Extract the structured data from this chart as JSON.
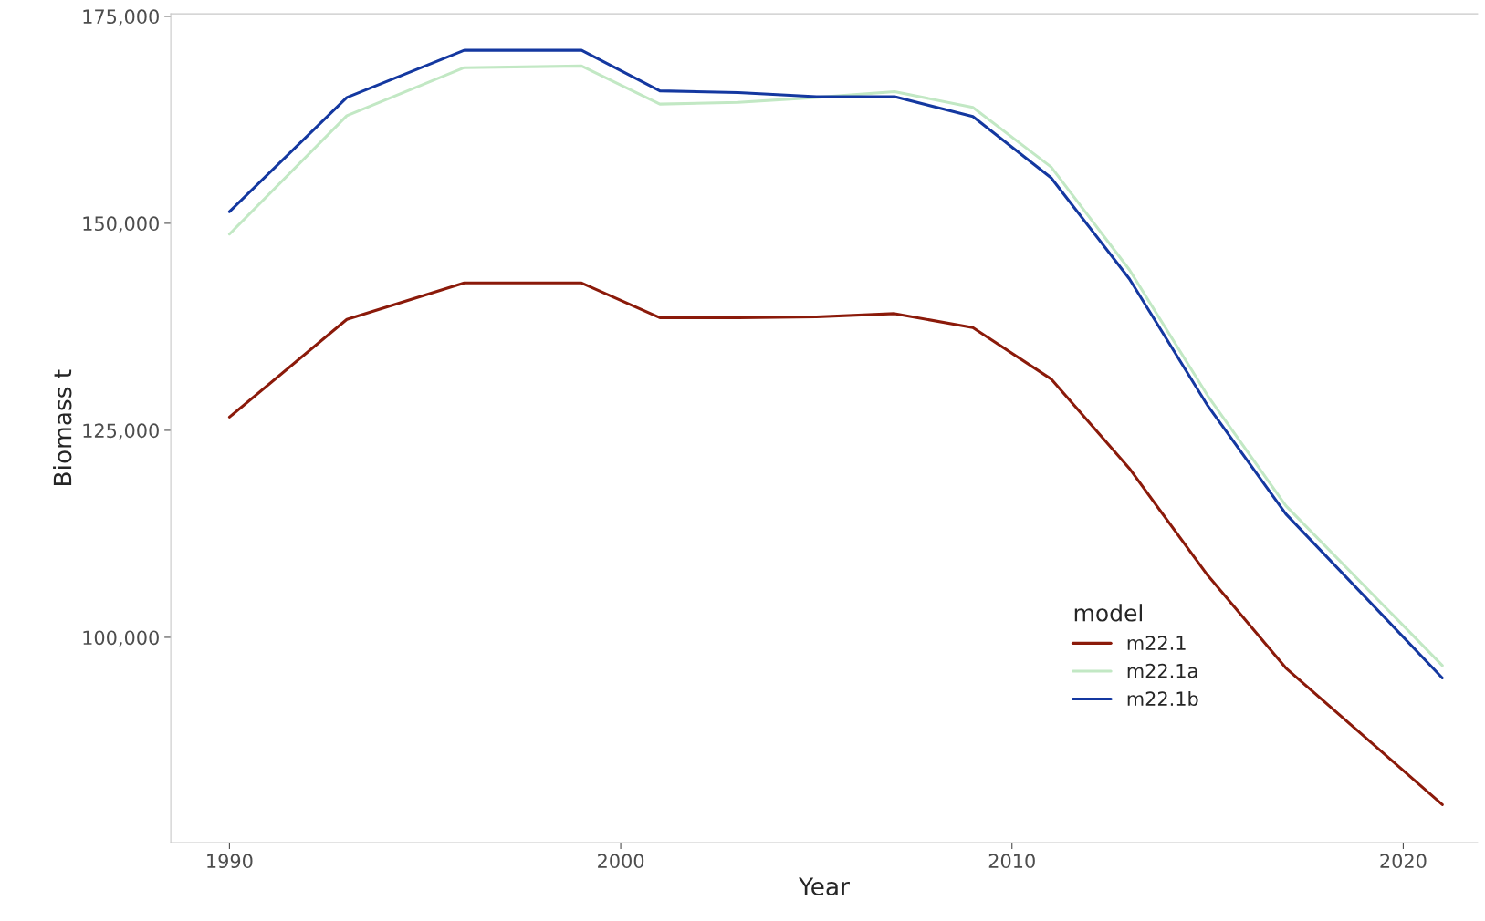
{
  "chart_data": {
    "type": "line",
    "xlabel": "Year",
    "ylabel": "Biomass t",
    "legend_title": "model",
    "legend": "bottom right",
    "grid": false,
    "x": [
      1990,
      1993,
      1996,
      1999,
      2001,
      2003,
      2005,
      2007,
      2009,
      2011,
      2013,
      2015,
      2017,
      2021
    ],
    "xlim": [
      1988.5,
      2021.9
    ],
    "xticks": [
      1990,
      2000,
      2010,
      2020
    ],
    "ylim": [
      75200,
      175300
    ],
    "yticks": [
      {
        "value": 100000,
        "label": "100,000"
      },
      {
        "value": 125000,
        "label": "125,000"
      },
      {
        "value": 150000,
        "label": "150,000"
      },
      {
        "value": 175000,
        "label": "175,000"
      }
    ],
    "series": [
      {
        "name": "m22.1",
        "color": "#8b1a0a",
        "values": [
          126600,
          138400,
          142800,
          142800,
          138600,
          138600,
          138700,
          139100,
          137400,
          131200,
          120400,
          107500,
          96300,
          79800
        ]
      },
      {
        "name": "m22.1a",
        "color": "#c2e8c4",
        "values": [
          148700,
          163000,
          168800,
          169000,
          164400,
          164600,
          165200,
          165900,
          164000,
          156800,
          144400,
          129200,
          115900,
          96600
        ]
      },
      {
        "name": "m22.1b",
        "color": "#1438a0",
        "values": [
          151400,
          165200,
          170900,
          170900,
          166000,
          165800,
          165300,
          165300,
          162900,
          155500,
          143300,
          128000,
          114900,
          95100
        ]
      }
    ]
  }
}
